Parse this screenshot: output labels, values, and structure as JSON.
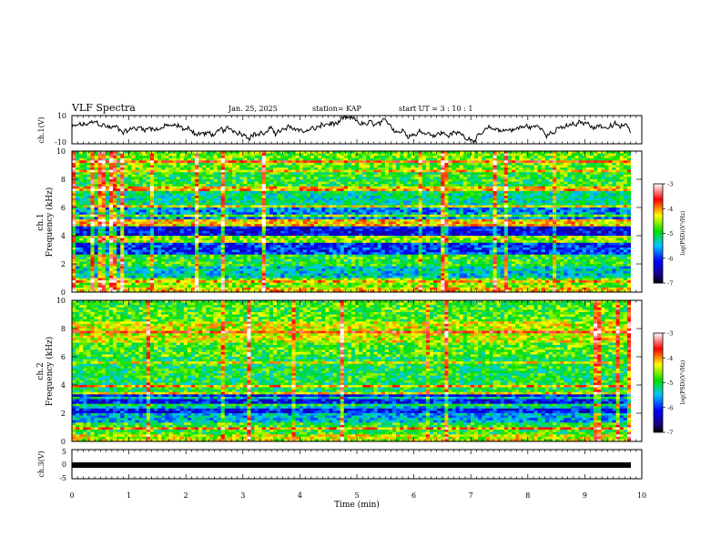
{
  "header": {
    "title": "VLF Spectra",
    "date": "Jan. 25, 2025",
    "station": "station= KAP",
    "start_ut": "start  UT =   3 : 10 : 1"
  },
  "chart_data": [
    {
      "id": "ch1-waveform",
      "type": "line",
      "ylabel": "ch.1(V)",
      "ylim": [
        -10,
        10
      ],
      "yticks": [
        "10",
        "-10"
      ],
      "xlim": [
        0,
        10
      ],
      "description_values_min": -10,
      "trace_color": "#000000"
    },
    {
      "id": "ch1-spectrogram",
      "type": "heatmap",
      "ylabel": "ch.1\nFrequency (kHz)",
      "ylabel_lines": [
        "ch.1",
        "Frequency (kHz)"
      ],
      "ylim": [
        0,
        10
      ],
      "yticks": [
        "0",
        "2",
        "4",
        "6",
        "8",
        "10"
      ],
      "xlim": [
        0,
        9.8
      ],
      "colorbar": {
        "label": "log(PSD)(V²/Hz)",
        "range": [
          -7,
          -3
        ],
        "ticks": [
          "-3",
          "-4",
          "-5",
          "-6",
          "-7"
        ]
      },
      "bands": [
        {
          "f": [
            0.0,
            0.4
          ],
          "level": -4.2
        },
        {
          "f": [
            0.4,
            1.0
          ],
          "level": -4.6
        },
        {
          "f": [
            1.0,
            1.8
          ],
          "level": -5.4
        },
        {
          "f": [
            1.8,
            2.6
          ],
          "level": -4.9
        },
        {
          "f": [
            2.6,
            3.5
          ],
          "level": -6.0
        },
        {
          "f": [
            3.5,
            4.0
          ],
          "level": -4.6
        },
        {
          "f": [
            4.0,
            4.6
          ],
          "level": -6.2
        },
        {
          "f": [
            4.6,
            5.2
          ],
          "level": -4.2
        },
        {
          "f": [
            5.2,
            6.0
          ],
          "level": -5.6
        },
        {
          "f": [
            6.0,
            7.2
          ],
          "level": -5.2
        },
        {
          "f": [
            7.2,
            8.6
          ],
          "level": -4.9
        },
        {
          "f": [
            8.6,
            10.0
          ],
          "level": -4.7
        }
      ]
    },
    {
      "id": "ch2-spectrogram",
      "type": "heatmap",
      "ylabel": "ch.2\nFrequency (kHz)",
      "ylabel_lines": [
        "ch.2",
        "Frequency (kHz)"
      ],
      "ylim": [
        0,
        10
      ],
      "yticks": [
        "0",
        "2",
        "4",
        "6",
        "8",
        "10"
      ],
      "xlim": [
        0,
        9.8
      ],
      "colorbar": {
        "label": "log(PSD)(V²/Hz)",
        "range": [
          -7,
          -3
        ],
        "ticks": [
          "-3",
          "-4",
          "-5",
          "-6",
          "-7"
        ]
      },
      "bands": [
        {
          "f": [
            0.0,
            0.5
          ],
          "level": -4.4
        },
        {
          "f": [
            0.5,
            1.4
          ],
          "level": -4.9
        },
        {
          "f": [
            1.4,
            2.0
          ],
          "level": -5.5
        },
        {
          "f": [
            2.0,
            3.3
          ],
          "level": -6.1
        },
        {
          "f": [
            3.3,
            4.0
          ],
          "level": -5.0
        },
        {
          "f": [
            4.0,
            6.0
          ],
          "level": -5.0
        },
        {
          "f": [
            6.0,
            7.0
          ],
          "level": -4.8
        },
        {
          "f": [
            7.0,
            8.5
          ],
          "level": -4.4
        },
        {
          "f": [
            8.5,
            10.0
          ],
          "level": -4.8
        }
      ]
    },
    {
      "id": "ch3-waveform",
      "type": "line",
      "ylabel": "ch.3(V)",
      "ylim": [
        -5,
        5
      ],
      "yticks": [
        "5",
        "0",
        "-5"
      ],
      "xlim": [
        0,
        10
      ],
      "constant_value": 0,
      "xlabel": "Time (min)",
      "xticks": [
        "0",
        "1",
        "2",
        "3",
        "4",
        "5",
        "6",
        "7",
        "8",
        "9",
        "10"
      ]
    }
  ]
}
